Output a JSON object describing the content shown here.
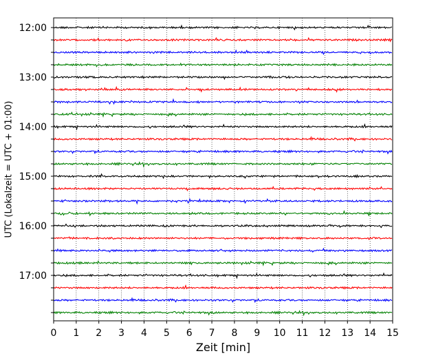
{
  "chart_data": {
    "type": "line",
    "title": "",
    "xlabel": "Zeit  [min]",
    "ylabel": "UTC (Lokalzeit = UTC + 01:00)",
    "xlim": [
      0,
      15
    ],
    "x_ticks": [
      0,
      1,
      2,
      3,
      4,
      5,
      6,
      7,
      8,
      9,
      10,
      11,
      12,
      13,
      14,
      15
    ],
    "y_tick_labels": [
      "12:00",
      "13:00",
      "14:00",
      "15:00",
      "16:00",
      "17:00"
    ],
    "grid": "vertical-dotted",
    "trace_colors": [
      "#000000",
      "#ff0000",
      "#0000ff",
      "#008000"
    ],
    "traces": [
      {
        "start": "12:00"
      },
      {
        "start": "12:15"
      },
      {
        "start": "12:30"
      },
      {
        "start": "12:45"
      },
      {
        "start": "13:00"
      },
      {
        "start": "13:15"
      },
      {
        "start": "13:30"
      },
      {
        "start": "13:45"
      },
      {
        "start": "14:00"
      },
      {
        "start": "14:15"
      },
      {
        "start": "14:30"
      },
      {
        "start": "14:45"
      },
      {
        "start": "15:00"
      },
      {
        "start": "15:15"
      },
      {
        "start": "15:30"
      },
      {
        "start": "15:45"
      },
      {
        "start": "16:00"
      },
      {
        "start": "16:15"
      },
      {
        "start": "16:30"
      },
      {
        "start": "16:45"
      },
      {
        "start": "17:00"
      },
      {
        "start": "17:15"
      },
      {
        "start": "17:30"
      },
      {
        "start": "17:45"
      }
    ]
  }
}
